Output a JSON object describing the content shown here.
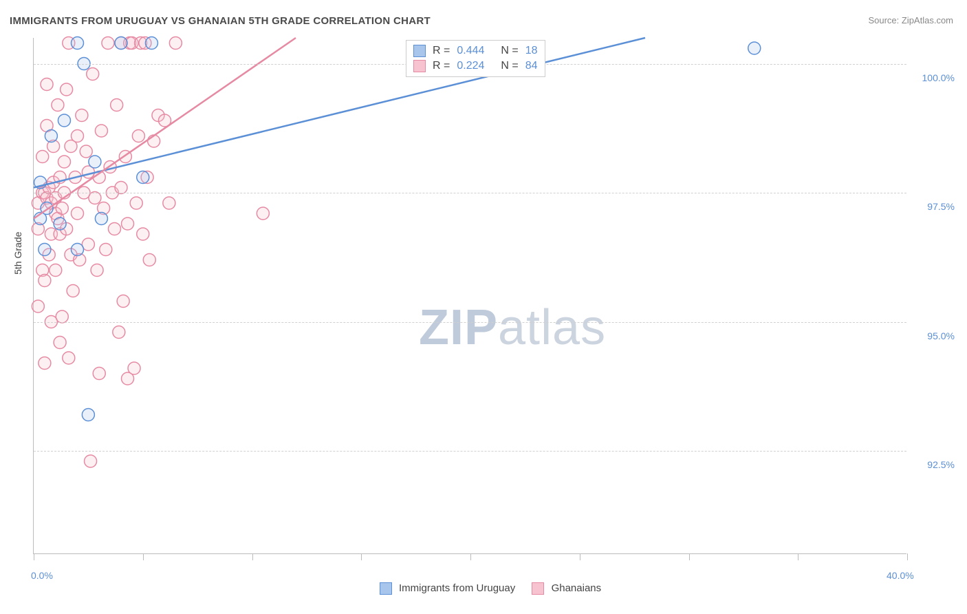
{
  "title": "IMMIGRANTS FROM URUGUAY VS GHANAIAN 5TH GRADE CORRELATION CHART",
  "source": "Source: ZipAtlas.com",
  "ylabel": "5th Grade",
  "watermark_bold": "ZIP",
  "watermark_light": "atlas",
  "chart": {
    "type": "scatter",
    "xlim": [
      0,
      40
    ],
    "ylim": [
      90.5,
      100.5
    ],
    "x_ticks": [
      0,
      5,
      10,
      15,
      20,
      25,
      30,
      35,
      40
    ],
    "x_tick_labels_shown": {
      "0": "0.0%",
      "40": "40.0%"
    },
    "y_gridlines": [
      92.5,
      95.0,
      97.5,
      100.0
    ],
    "y_tick_labels": [
      "92.5%",
      "95.0%",
      "97.5%",
      "100.0%"
    ],
    "background_color": "#ffffff",
    "grid_color": "#d0d0d0",
    "axis_color": "#bbbbbb",
    "tick_label_color": "#5b8fd6",
    "marker_radius": 9,
    "marker_stroke_width": 1.5,
    "marker_fill_opacity": 0.25,
    "line_width": 2.5
  },
  "series": [
    {
      "name": "Immigrants from Uruguay",
      "color_stroke": "#5b8fd6",
      "color_fill": "#a8c5eb",
      "R": "0.444",
      "N": "18",
      "trend": {
        "x1": 0,
        "y1": 97.6,
        "x2": 28,
        "y2": 100.5
      },
      "points": [
        [
          0.3,
          97.0
        ],
        [
          0.3,
          97.7
        ],
        [
          0.5,
          96.4
        ],
        [
          0.6,
          97.2
        ],
        [
          0.8,
          98.6
        ],
        [
          1.2,
          96.9
        ],
        [
          1.4,
          98.9
        ],
        [
          2.0,
          100.4
        ],
        [
          2.0,
          96.4
        ],
        [
          2.3,
          100.0
        ],
        [
          2.5,
          93.2
        ],
        [
          2.8,
          98.1
        ],
        [
          3.1,
          97.0
        ],
        [
          4.0,
          100.4
        ],
        [
          5.0,
          97.8
        ],
        [
          5.4,
          100.4
        ],
        [
          21.8,
          100.3
        ],
        [
          33.0,
          100.3
        ]
      ]
    },
    {
      "name": "Ghanaians",
      "color_stroke": "#e68aa3",
      "color_fill": "#f7c3d1",
      "R": "0.224",
      "N": "84",
      "trend": {
        "x1": 0,
        "y1": 97.0,
        "x2": 12,
        "y2": 100.5
      },
      "points": [
        [
          0.2,
          95.3
        ],
        [
          0.2,
          96.8
        ],
        [
          0.2,
          97.3
        ],
        [
          0.4,
          97.5
        ],
        [
          0.4,
          98.2
        ],
        [
          0.4,
          96.0
        ],
        [
          0.5,
          97.5
        ],
        [
          0.5,
          94.2
        ],
        [
          0.5,
          95.8
        ],
        [
          0.6,
          98.8
        ],
        [
          0.6,
          97.4
        ],
        [
          0.6,
          99.6
        ],
        [
          0.7,
          97.6
        ],
        [
          0.7,
          96.3
        ],
        [
          0.8,
          97.3
        ],
        [
          0.8,
          96.7
        ],
        [
          0.8,
          95.0
        ],
        [
          0.9,
          97.7
        ],
        [
          0.9,
          98.4
        ],
        [
          1.0,
          97.4
        ],
        [
          1.0,
          96.0
        ],
        [
          1.0,
          97.1
        ],
        [
          1.1,
          97.0
        ],
        [
          1.1,
          99.2
        ],
        [
          1.2,
          97.8
        ],
        [
          1.2,
          96.7
        ],
        [
          1.2,
          94.6
        ],
        [
          1.3,
          97.2
        ],
        [
          1.3,
          95.1
        ],
        [
          1.4,
          98.1
        ],
        [
          1.4,
          97.5
        ],
        [
          1.5,
          99.5
        ],
        [
          1.5,
          96.8
        ],
        [
          1.6,
          100.4
        ],
        [
          1.6,
          94.3
        ],
        [
          1.7,
          98.4
        ],
        [
          1.7,
          96.3
        ],
        [
          1.8,
          95.6
        ],
        [
          1.9,
          97.8
        ],
        [
          2.0,
          98.6
        ],
        [
          2.0,
          97.1
        ],
        [
          2.1,
          96.2
        ],
        [
          2.2,
          99.0
        ],
        [
          2.3,
          97.5
        ],
        [
          2.4,
          98.3
        ],
        [
          2.5,
          97.9
        ],
        [
          2.5,
          96.5
        ],
        [
          2.6,
          92.3
        ],
        [
          2.7,
          99.8
        ],
        [
          2.8,
          97.4
        ],
        [
          2.9,
          96.0
        ],
        [
          3.0,
          97.8
        ],
        [
          3.0,
          94.0
        ],
        [
          3.1,
          98.7
        ],
        [
          3.2,
          97.2
        ],
        [
          3.3,
          96.4
        ],
        [
          3.4,
          100.4
        ],
        [
          3.5,
          98.0
        ],
        [
          3.6,
          97.5
        ],
        [
          3.7,
          96.8
        ],
        [
          3.8,
          99.2
        ],
        [
          3.9,
          94.8
        ],
        [
          4.0,
          97.6
        ],
        [
          4.0,
          100.4
        ],
        [
          4.1,
          95.4
        ],
        [
          4.2,
          98.2
        ],
        [
          4.3,
          96.9
        ],
        [
          4.4,
          100.4
        ],
        [
          4.5,
          100.4
        ],
        [
          4.6,
          94.1
        ],
        [
          4.7,
          97.3
        ],
        [
          4.8,
          98.6
        ],
        [
          4.9,
          100.4
        ],
        [
          5.0,
          96.7
        ],
        [
          5.1,
          100.4
        ],
        [
          5.2,
          97.8
        ],
        [
          5.3,
          96.2
        ],
        [
          5.5,
          98.5
        ],
        [
          5.7,
          99.0
        ],
        [
          6.0,
          98.9
        ],
        [
          6.2,
          97.3
        ],
        [
          6.5,
          100.4
        ],
        [
          10.5,
          97.1
        ],
        [
          4.3,
          93.9
        ]
      ]
    }
  ],
  "legend_labels": {
    "r_prefix": "R =",
    "n_prefix": "N ="
  },
  "bottom_legend": {
    "series1": "Immigrants from Uruguay",
    "series2": "Ghanaians"
  }
}
